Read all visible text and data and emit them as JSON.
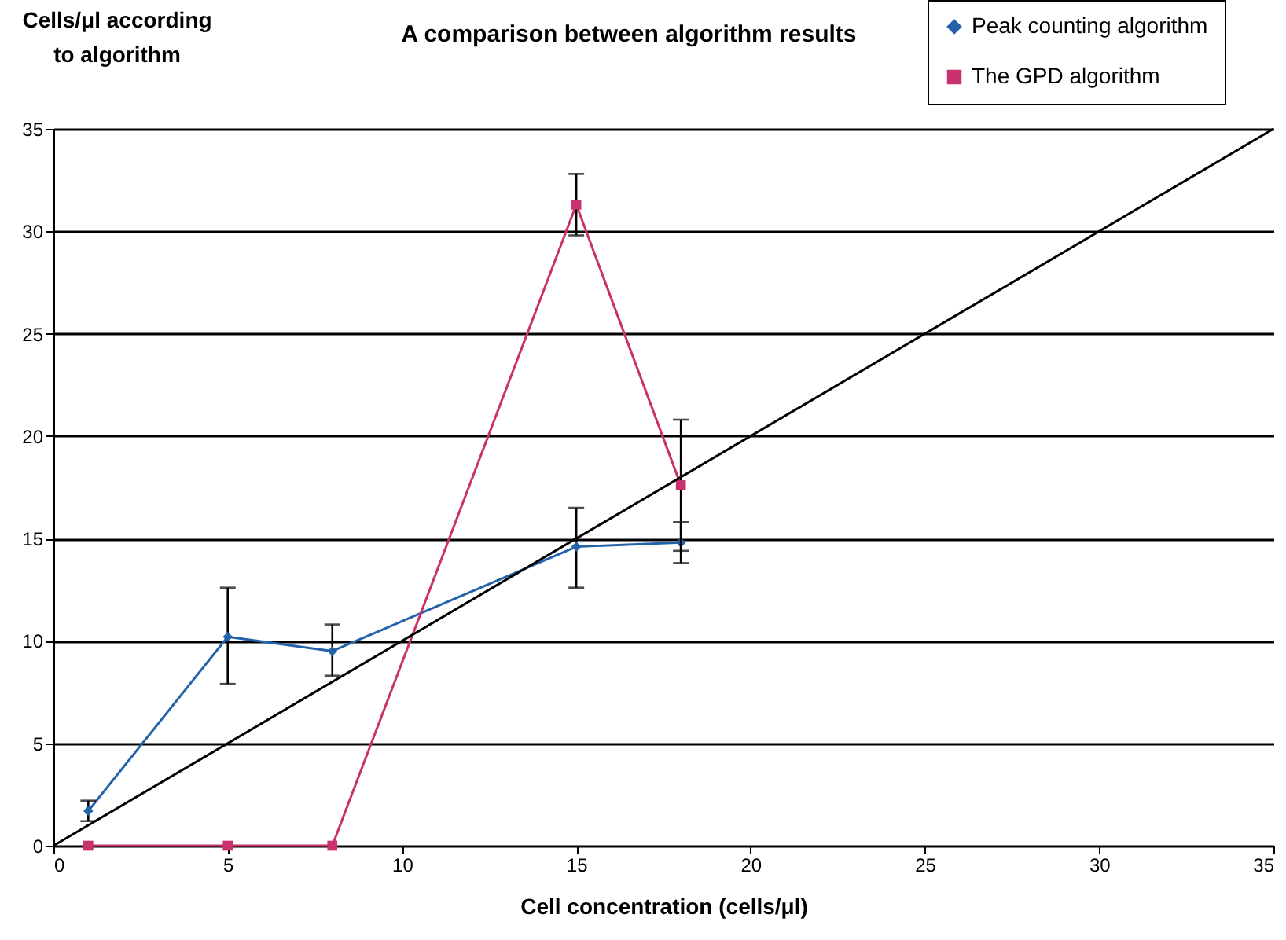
{
  "chart_data": {
    "type": "line",
    "title": "A comparison between algorithm results",
    "xlabel": "Cell concentration (cells/μl)",
    "ylabel": "Cells/μl according to algorithm",
    "x": [
      1,
      5,
      8,
      15,
      18
    ],
    "series": [
      {
        "name": "Peak counting algorithm",
        "color": "#2563a8",
        "marker": "diamond",
        "values": [
          1.7,
          10.2,
          9.5,
          14.6,
          14.8
        ],
        "errors": [
          0.5,
          [
            7.9,
            12.6
          ],
          [
            8.3,
            10.8
          ],
          [
            12.6,
            16.5
          ],
          [
            13.8,
            15.8
          ]
        ]
      },
      {
        "name": "The GPD algorithm",
        "color": "#c8306e",
        "marker": "square",
        "values": [
          0,
          0,
          0,
          31.3,
          17.6
        ],
        "errors": [
          null,
          null,
          null,
          [
            29.8,
            32.8
          ],
          [
            14.4,
            20.8
          ]
        ]
      },
      {
        "color": "#000000",
        "marker": "none",
        "x": [
          0,
          35
        ],
        "values": [
          0,
          35
        ]
      }
    ],
    "xlim": [
      0,
      35
    ],
    "xticks": [
      0,
      5,
      10,
      15,
      20,
      25,
      30,
      35
    ],
    "ylim": [
      0,
      35
    ],
    "yticks": [
      0,
      5,
      10,
      15,
      20,
      25,
      30,
      35
    ],
    "grid": "y",
    "legend": "top right"
  }
}
